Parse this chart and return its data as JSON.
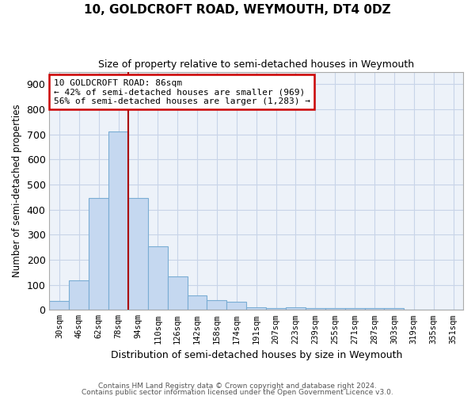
{
  "title1": "10, GOLDCROFT ROAD, WEYMOUTH, DT4 0DZ",
  "title2": "Size of property relative to semi-detached houses in Weymouth",
  "xlabel": "Distribution of semi-detached houses by size in Weymouth",
  "ylabel": "Number of semi-detached properties",
  "categories": [
    "30sqm",
    "46sqm",
    "62sqm",
    "78sqm",
    "94sqm",
    "110sqm",
    "126sqm",
    "142sqm",
    "158sqm",
    "174sqm",
    "191sqm",
    "207sqm",
    "223sqm",
    "239sqm",
    "255sqm",
    "271sqm",
    "287sqm",
    "303sqm",
    "319sqm",
    "335sqm",
    "351sqm"
  ],
  "values": [
    35,
    118,
    447,
    712,
    447,
    255,
    133,
    57,
    40,
    32,
    10,
    8,
    11,
    7,
    6,
    7,
    7,
    8,
    0,
    0,
    0
  ],
  "bar_color": "#c5d8f0",
  "bar_edge_color": "#7aadd4",
  "redline_x": 3.5,
  "redline_color": "#aa0000",
  "annotation_title": "10 GOLDCROFT ROAD: 86sqm",
  "annotation_line1": "← 42% of semi-detached houses are smaller (969)",
  "annotation_line2": "56% of semi-detached houses are larger (1,283) →",
  "annotation_box_color": "#cc0000",
  "caption1": "Contains HM Land Registry data © Crown copyright and database right 2024.",
  "caption2": "Contains public sector information licensed under the Open Government Licence v3.0.",
  "ylim": [
    0,
    950
  ],
  "yticks": [
    0,
    100,
    200,
    300,
    400,
    500,
    600,
    700,
    800,
    900
  ],
  "grid_color": "#c8d4e8",
  "bg_color": "#edf2f9"
}
